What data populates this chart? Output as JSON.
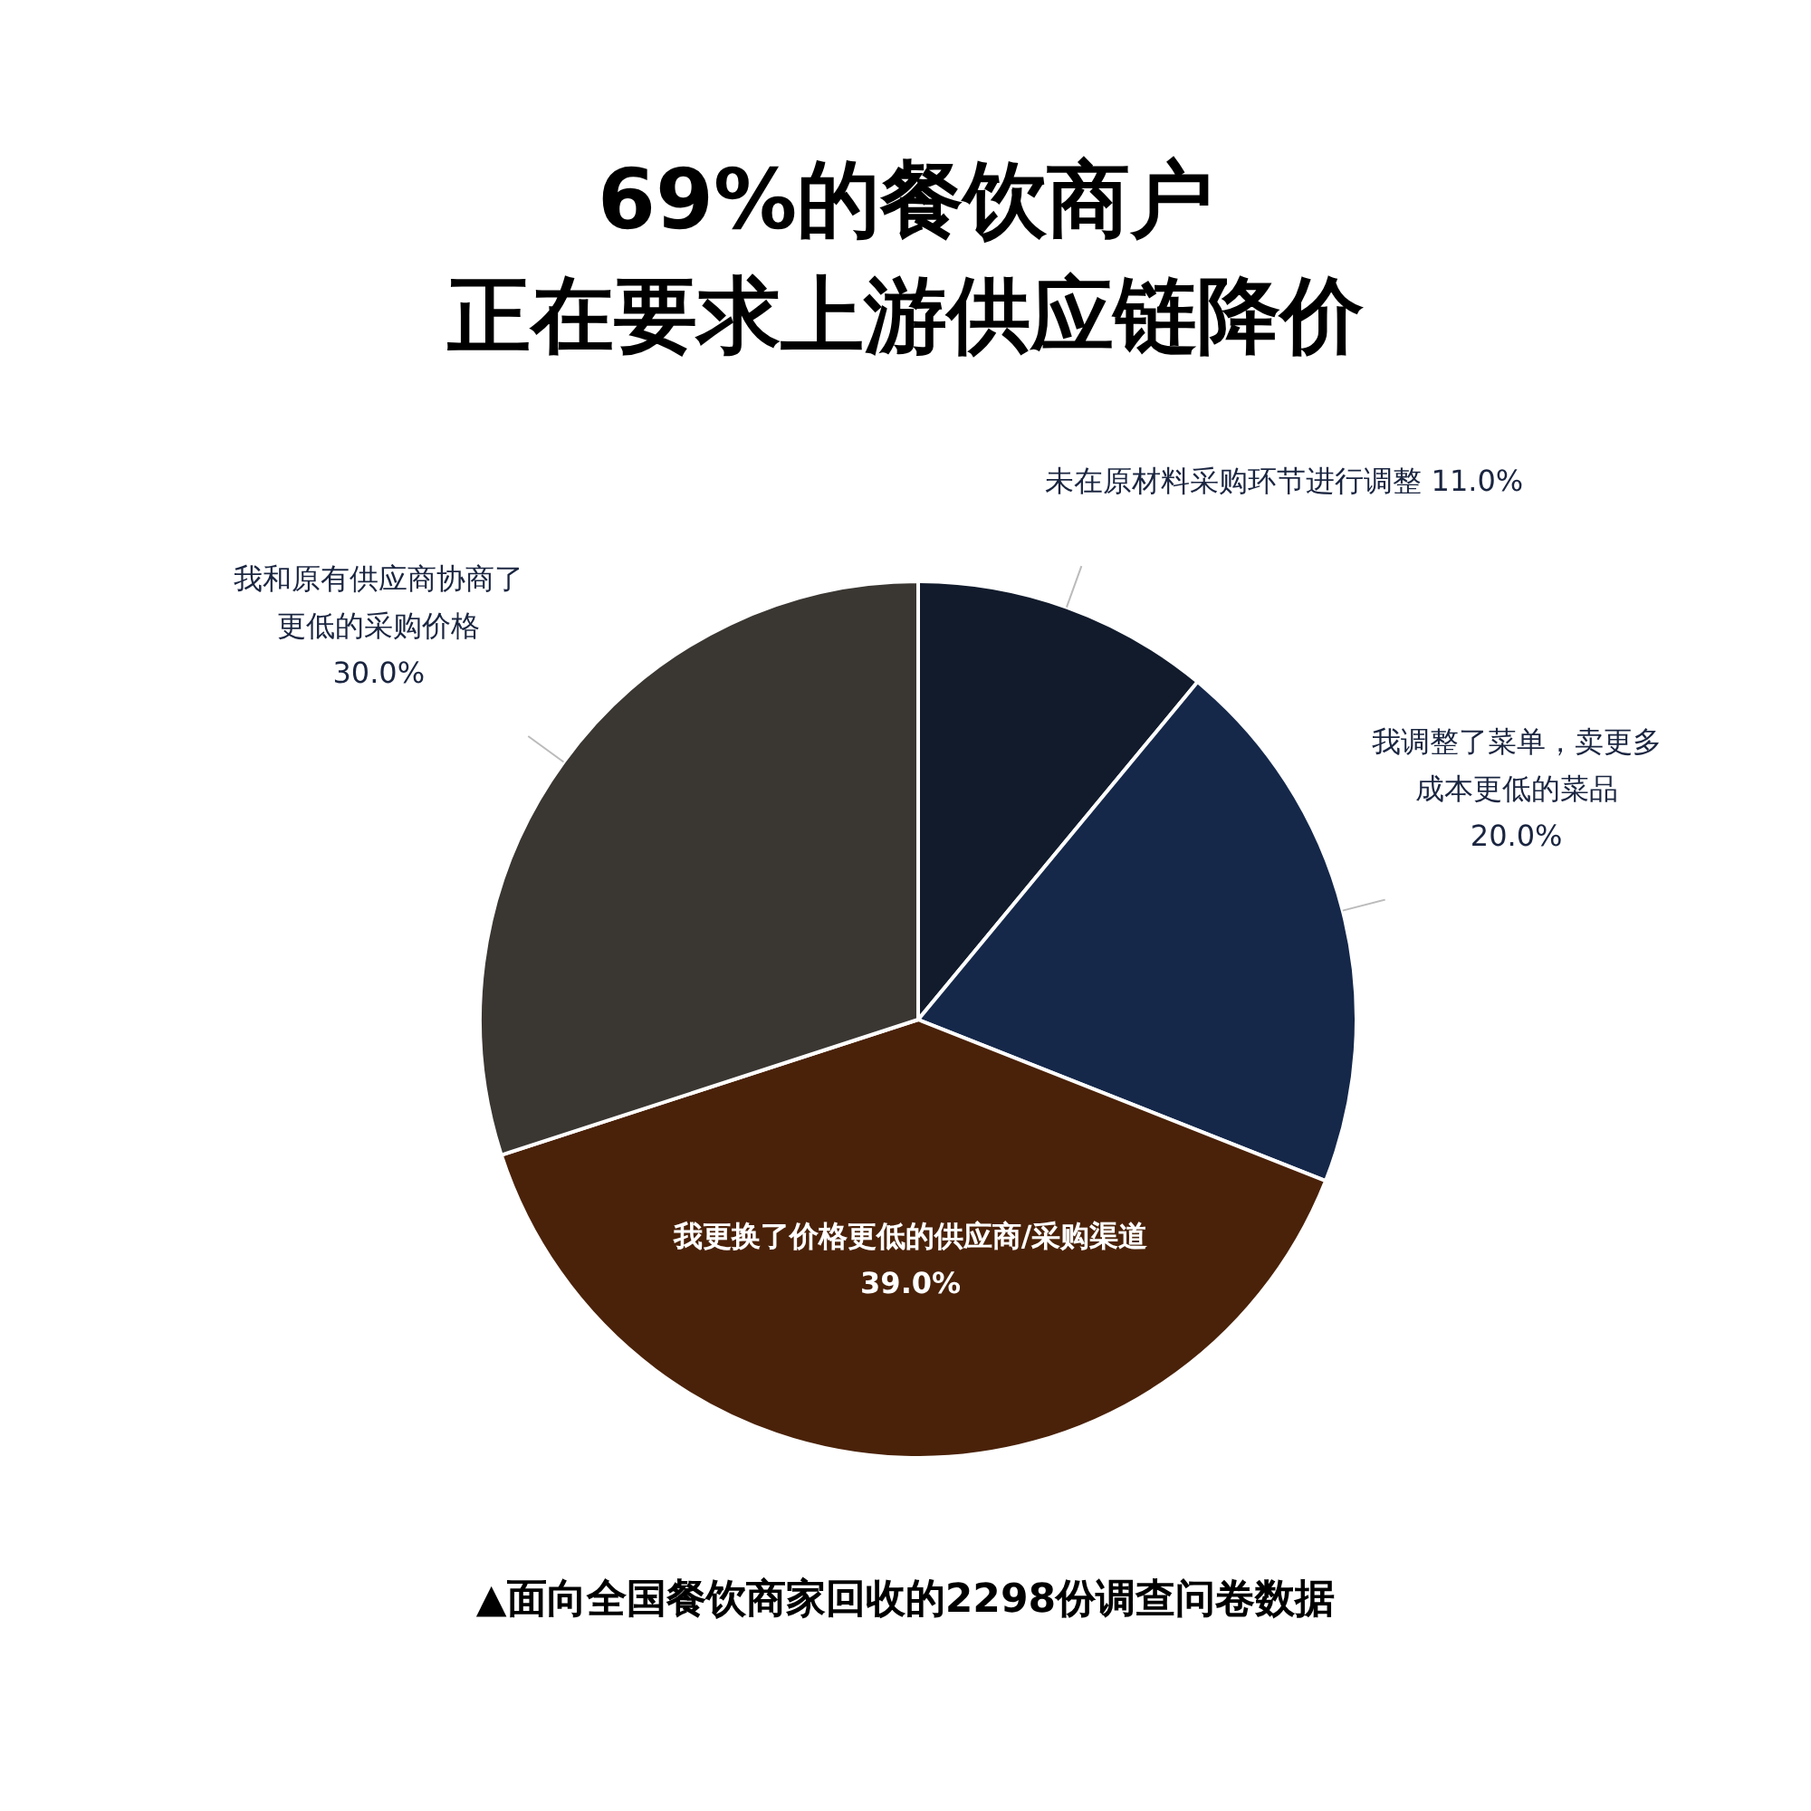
{
  "chart_data": {
    "type": "pie",
    "title": "69%的餐饮商户",
    "subtitle": "正在要求上游供应链降价",
    "categories": [
      "未在原材料采购环节进行调整",
      "我调整了菜单，卖更多成本更低的菜品",
      "我更换了价格更低的供应商/采购渠道",
      "我和原有供应商协商了更低的采购价格"
    ],
    "values": [
      11.0,
      20.0,
      39.0,
      30.0
    ],
    "value_labels": [
      "11.0%",
      "20.0%",
      "39.0%",
      "30.0%"
    ],
    "colors": [
      "#111b2c",
      "#15284a",
      "#4a2209",
      "#3a3632"
    ],
    "annotations": [
      "▲面向全国餐饮商家回收的2298份调查问卷数据"
    ]
  }
}
